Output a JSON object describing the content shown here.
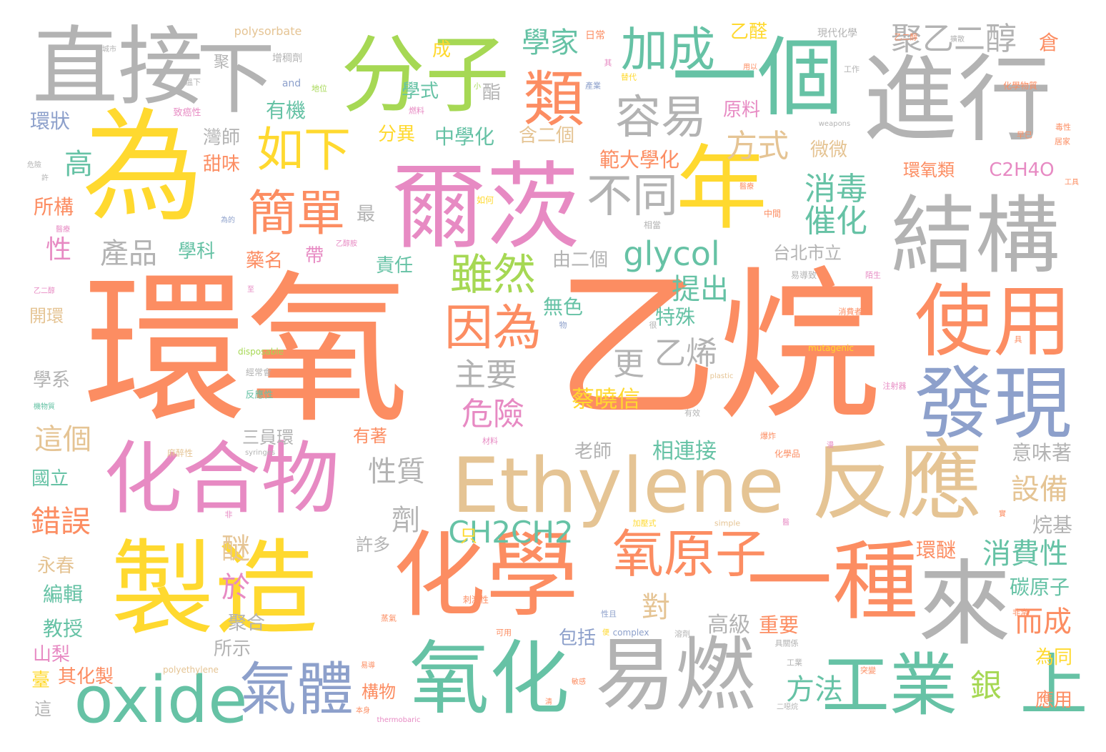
{
  "palette": {
    "orange": "#fc8d62",
    "gray": "#b3b3b3",
    "yellow": "#ffd92f",
    "green": "#a6d854",
    "teal": "#66c2a5",
    "pink": "#e78ac3",
    "blue": "#8da0cb",
    "tan": "#e5c494"
  },
  "words": [
    {
      "text": "環氧",
      "color": "#fc8d62"
    },
    {
      "text": "乙烷",
      "color": "#fc8d62"
    },
    {
      "text": "為",
      "color": "#ffd92f"
    },
    {
      "text": "爾茨",
      "color": "#e78ac3"
    },
    {
      "text": "進行",
      "color": "#b3b3b3"
    },
    {
      "text": "直接",
      "color": "#b3b3b3"
    },
    {
      "text": "下",
      "color": "#b3b3b3"
    },
    {
      "text": "分子",
      "color": "#a6d854"
    },
    {
      "text": "一個",
      "color": "#66c2a5"
    },
    {
      "text": "年",
      "color": "#ffd92f"
    },
    {
      "text": "結構",
      "color": "#b3b3b3"
    },
    {
      "text": "製造",
      "color": "#ffd92f"
    },
    {
      "text": "化學",
      "color": "#fc8d62"
    },
    {
      "text": "化合物",
      "color": "#e78ac3"
    },
    {
      "text": "Ethylene",
      "color": "#e5c494"
    },
    {
      "text": "反應",
      "color": "#e5c494"
    },
    {
      "text": "一種",
      "color": "#fc8d62"
    },
    {
      "text": "易燃",
      "color": "#b3b3b3"
    },
    {
      "text": "氧化",
      "color": "#66c2a5"
    },
    {
      "text": "oxide",
      "color": "#66c2a5"
    },
    {
      "text": "使用",
      "color": "#fc8d62"
    },
    {
      "text": "發現",
      "color": "#8da0cb"
    },
    {
      "text": "來",
      "color": "#b3b3b3"
    },
    {
      "text": "工業",
      "color": "#66c2a5"
    },
    {
      "text": "上",
      "color": "#66c2a5"
    },
    {
      "text": "氣體",
      "color": "#8da0cb"
    },
    {
      "text": "氧原子",
      "color": "#fc8d62"
    },
    {
      "text": "加成",
      "color": "#66c2a5"
    },
    {
      "text": "容易",
      "color": "#b3b3b3"
    },
    {
      "text": "類",
      "color": "#fc8d62"
    },
    {
      "text": "如下",
      "color": "#ffd92f"
    },
    {
      "text": "簡單",
      "color": "#fc8d62"
    },
    {
      "text": "不同",
      "color": "#b3b3b3"
    },
    {
      "text": "因為",
      "color": "#fc8d62"
    },
    {
      "text": "雖然",
      "color": "#a6d854"
    },
    {
      "text": "glycol",
      "color": "#66c2a5"
    },
    {
      "text": "CH2CH2",
      "color": "#66c2a5"
    },
    {
      "text": "聚乙二醇",
      "color": "#b3b3b3"
    },
    {
      "text": "學家",
      "color": "#66c2a5"
    },
    {
      "text": "產品",
      "color": "#b3b3b3"
    },
    {
      "text": "高",
      "color": "#66c2a5"
    },
    {
      "text": "主要",
      "color": "#b3b3b3"
    },
    {
      "text": "更",
      "color": "#b3b3b3"
    },
    {
      "text": "乙烯",
      "color": "#b3b3b3"
    },
    {
      "text": "危險",
      "color": "#e78ac3"
    },
    {
      "text": "方式",
      "color": "#e5c494"
    },
    {
      "text": "消毒",
      "color": "#66c2a5"
    },
    {
      "text": "催化",
      "color": "#66c2a5"
    },
    {
      "text": "提出",
      "color": "#66c2a5"
    },
    {
      "text": "錯誤",
      "color": "#fc8d62"
    },
    {
      "text": "這個",
      "color": "#e5c494"
    },
    {
      "text": "設備",
      "color": "#e5c494"
    },
    {
      "text": "消費性",
      "color": "#66c2a5"
    },
    {
      "text": "而成",
      "color": "#fc8d62"
    },
    {
      "text": "銀",
      "color": "#a6d854"
    },
    {
      "text": "方法",
      "color": "#66c2a5"
    },
    {
      "text": "性質",
      "color": "#b3b3b3"
    },
    {
      "text": "劑",
      "color": "#b3b3b3"
    },
    {
      "text": "醚",
      "color": "#e5c494"
    },
    {
      "text": "於",
      "color": "#e78ac3"
    },
    {
      "text": "對",
      "color": "#e5c494"
    },
    {
      "text": "相連接",
      "color": "#66c2a5"
    },
    {
      "text": "蔡曉信",
      "color": "#ffd92f"
    },
    {
      "text": "特殊",
      "color": "#66c2a5"
    },
    {
      "text": "無色",
      "color": "#66c2a5"
    },
    {
      "text": "環醚",
      "color": "#fc8d62"
    },
    {
      "text": "碳原子",
      "color": "#66c2a5"
    },
    {
      "text": "意味著",
      "color": "#b3b3b3"
    },
    {
      "text": "烷基",
      "color": "#b3b3b3"
    },
    {
      "text": "高級",
      "color": "#b3b3b3"
    },
    {
      "text": "重要",
      "color": "#fc8d62"
    },
    {
      "text": "環狀",
      "color": "#8da0cb"
    },
    {
      "text": "有機",
      "color": "#66c2a5"
    },
    {
      "text": "學式",
      "color": "#66c2a5"
    },
    {
      "text": "灣師",
      "color": "#b3b3b3"
    },
    {
      "text": "甜味",
      "color": "#fc8d62"
    },
    {
      "text": "分異",
      "color": "#ffd92f"
    },
    {
      "text": "中學化",
      "color": "#66c2a5"
    },
    {
      "text": "含二個",
      "color": "#e5c494"
    },
    {
      "text": "原料",
      "color": "#e78ac3"
    },
    {
      "text": "微微",
      "color": "#e5c494"
    },
    {
      "text": "範大學化",
      "color": "#fc8d62"
    },
    {
      "text": "環氧類",
      "color": "#fc8d62"
    },
    {
      "text": "C2H4O",
      "color": "#e78ac3"
    },
    {
      "text": "乙醛",
      "color": "#ffd92f"
    },
    {
      "text": "成",
      "color": "#ffd92f"
    },
    {
      "text": "酯",
      "color": "#b3b3b3"
    },
    {
      "text": "所構",
      "color": "#fc8d62"
    },
    {
      "text": "性",
      "color": "#e78ac3"
    },
    {
      "text": "學科",
      "color": "#66c2a5"
    },
    {
      "text": "最",
      "color": "#b3b3b3"
    },
    {
      "text": "藥名",
      "color": "#fc8d62"
    },
    {
      "text": "帶",
      "color": "#e78ac3"
    },
    {
      "text": "責任",
      "color": "#66c2a5"
    },
    {
      "text": "由二個",
      "color": "#b3b3b3"
    },
    {
      "text": "台北市立",
      "color": "#b3b3b3"
    },
    {
      "text": "開環",
      "color": "#e5c494"
    },
    {
      "text": "學系",
      "color": "#b3b3b3"
    },
    {
      "text": "三員環",
      "color": "#b3b3b3"
    },
    {
      "text": "有著",
      "color": "#fc8d62"
    },
    {
      "text": "老師",
      "color": "#b3b3b3"
    },
    {
      "text": "國立",
      "color": "#66c2a5"
    },
    {
      "text": "永春",
      "color": "#e5c494"
    },
    {
      "text": "編輯",
      "color": "#66c2a5"
    },
    {
      "text": "教授",
      "color": "#66c2a5"
    },
    {
      "text": "山梨",
      "color": "#e78ac3"
    },
    {
      "text": "臺",
      "color": "#ffd92f"
    },
    {
      "text": "其化製",
      "color": "#fc8d62"
    },
    {
      "text": "這",
      "color": "#b3b3b3"
    },
    {
      "text": "許多",
      "color": "#b3b3b3"
    },
    {
      "text": "只",
      "color": "#ffd92f"
    },
    {
      "text": "聚合",
      "color": "#b3b3b3"
    },
    {
      "text": "所示",
      "color": "#b3b3b3"
    },
    {
      "text": "構物",
      "color": "#fc8d62"
    },
    {
      "text": "包括",
      "color": "#8da0cb"
    },
    {
      "text": "為同",
      "color": "#ffd92f"
    },
    {
      "text": "應用",
      "color": "#fc8d62"
    },
    {
      "text": "倉",
      "color": "#fc8d62"
    },
    {
      "text": "聚",
      "color": "#b3b3b3"
    },
    {
      "text": "polysorbate",
      "color": "#e5c494"
    },
    {
      "text": "現代化學",
      "color": "#b3b3b3"
    },
    {
      "text": "增稠劑",
      "color": "#b3b3b3"
    },
    {
      "text": "日常",
      "color": "#fc8d62"
    },
    {
      "text": "化學物質",
      "color": "#fc8d62"
    },
    {
      "text": "乙二醇",
      "color": "#fc8d62"
    },
    {
      "text": "disposable",
      "color": "#a6d854"
    },
    {
      "text": "mutagenic",
      "color": "#ffd92f"
    },
    {
      "text": "complex",
      "color": "#8da0cb"
    },
    {
      "text": "polyethylene",
      "color": "#e5c494"
    },
    {
      "text": "thermobaric",
      "color": "#e78ac3"
    },
    {
      "text": "plastic",
      "color": "#e5c494"
    },
    {
      "text": "simple",
      "color": "#e5c494"
    },
    {
      "text": "syringes",
      "color": "#b3b3b3"
    },
    {
      "text": "weapons",
      "color": "#b3b3b3"
    },
    {
      "text": "and",
      "color": "#8da0cb"
    },
    {
      "text": "致癌性",
      "color": "#e78ac3"
    },
    {
      "text": "反應性",
      "color": "#66c2a5"
    },
    {
      "text": "經常會",
      "color": "#b3b3b3"
    },
    {
      "text": "麻醉性",
      "color": "#e5c494"
    },
    {
      "text": "刺激性",
      "color": "#fc8d62"
    },
    {
      "text": "化學品",
      "color": "#fc8d62"
    },
    {
      "text": "消費者",
      "color": "#fc8d62"
    },
    {
      "text": "注射器",
      "color": "#e78ac3"
    },
    {
      "text": "有效",
      "color": "#b3b3b3"
    },
    {
      "text": "中間",
      "color": "#fc8d62"
    },
    {
      "text": "相當",
      "color": "#b3b3b3"
    },
    {
      "text": "如何",
      "color": "#ffd92f"
    },
    {
      "text": "易導致",
      "color": "#b3b3b3"
    },
    {
      "text": "陌生",
      "color": "#e78ac3"
    },
    {
      "text": "物",
      "color": "#8da0cb"
    },
    {
      "text": "很",
      "color": "#b3b3b3"
    },
    {
      "text": "具",
      "color": "#fc8d62"
    },
    {
      "text": "材料",
      "color": "#e78ac3"
    },
    {
      "text": "爆炸",
      "color": "#fc8d62"
    },
    {
      "text": "非",
      "color": "#e78ac3"
    },
    {
      "text": "加壓式",
      "color": "#ffd92f"
    },
    {
      "text": "蒸氣",
      "color": "#fc8d62"
    },
    {
      "text": "性且",
      "color": "#8da0cb"
    },
    {
      "text": "可用",
      "color": "#fc8d62"
    },
    {
      "text": "溶劑",
      "color": "#b3b3b3"
    },
    {
      "text": "具關係",
      "color": "#b3b3b3"
    },
    {
      "text": "工業",
      "color": "#b3b3b3"
    },
    {
      "text": "突變",
      "color": "#fc8d62"
    },
    {
      "text": "二噁烷",
      "color": "#b3b3b3"
    },
    {
      "text": "非常",
      "color": "#fc8d62"
    },
    {
      "text": "毒性",
      "color": "#fc8d62"
    },
    {
      "text": "早已",
      "color": "#fc8d62"
    },
    {
      "text": "居家",
      "color": "#fc8d62"
    },
    {
      "text": "工具",
      "color": "#fc8d62"
    },
    {
      "text": "本身",
      "color": "#fc8d62"
    },
    {
      "text": "敏感",
      "color": "#fc8d62"
    },
    {
      "text": "清",
      "color": "#fc8d62"
    },
    {
      "text": "易導",
      "color": "#fc8d62"
    },
    {
      "text": "工作",
      "color": "#b3b3b3"
    },
    {
      "text": "替代",
      "color": "#ffd92f"
    },
    {
      "text": "產業",
      "color": "#8da0cb"
    },
    {
      "text": "用以",
      "color": "#fc8d62"
    },
    {
      "text": "溫下",
      "color": "#b3b3b3"
    },
    {
      "text": "燃料",
      "color": "#e78ac3"
    },
    {
      "text": "地位",
      "color": "#a6d854"
    },
    {
      "text": "危險",
      "color": "#b3b3b3"
    },
    {
      "text": "許",
      "color": "#b3b3b3"
    },
    {
      "text": "城市",
      "color": "#b3b3b3"
    },
    {
      "text": "醫療",
      "color": "#e78ac3"
    },
    {
      "text": "為的",
      "color": "#8da0cb"
    },
    {
      "text": "乙二醇",
      "color": "#e78ac3"
    },
    {
      "text": "至",
      "color": "#e78ac3"
    },
    {
      "text": "機物質",
      "color": "#66c2a5"
    },
    {
      "text": "漫",
      "color": "#e78ac3"
    },
    {
      "text": "小",
      "color": "#a6d854"
    },
    {
      "text": "便",
      "color": "#ffd92f"
    },
    {
      "text": "其",
      "color": "#e78ac3"
    },
    {
      "text": "醫療",
      "color": "#fc8d62"
    },
    {
      "text": "乙醇胺",
      "color": "#e78ac3"
    },
    {
      "text": "擴散",
      "color": "#b3b3b3"
    },
    {
      "text": "醫",
      "color": "#e78ac3"
    },
    {
      "text": "實",
      "color": "#fc8d62"
    }
  ]
}
